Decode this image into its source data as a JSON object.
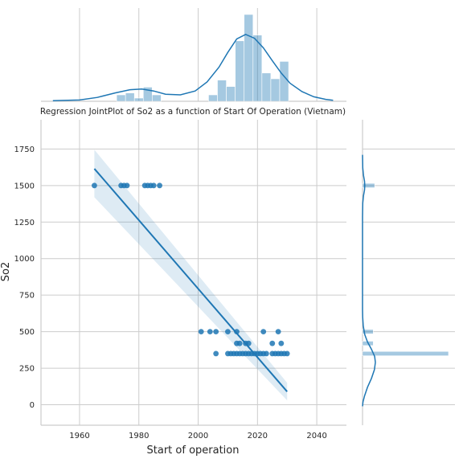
{
  "chart_data": {
    "type": "scatter",
    "title": "Regression JointPlot of So2 as a function of Start Of Operation (Vietnam)",
    "xlabel": "Start of operation",
    "ylabel": "So2",
    "xlim": [
      1947,
      2050
    ],
    "ylim": [
      -140,
      1950
    ],
    "xticks": [
      1960,
      1980,
      2000,
      2020,
      2040
    ],
    "yticks": [
      0,
      250,
      500,
      750,
      1000,
      1250,
      1500,
      1750
    ],
    "grid": true,
    "color": "#1f77b4",
    "points": [
      [
        1965,
        1500
      ],
      [
        1974,
        1500
      ],
      [
        1975,
        1500
      ],
      [
        1976,
        1500
      ],
      [
        1982,
        1500
      ],
      [
        1983,
        1500
      ],
      [
        1984,
        1500
      ],
      [
        1985,
        1500
      ],
      [
        1987,
        1500
      ],
      [
        2001,
        500
      ],
      [
        2004,
        500
      ],
      [
        2006,
        500
      ],
      [
        2010,
        500
      ],
      [
        2013,
        500
      ],
      [
        2022,
        500
      ],
      [
        2027,
        500
      ],
      [
        2013,
        420
      ],
      [
        2014,
        420
      ],
      [
        2016,
        420
      ],
      [
        2017,
        420
      ],
      [
        2025,
        420
      ],
      [
        2028,
        420
      ],
      [
        2006,
        350
      ],
      [
        2010,
        350
      ],
      [
        2011,
        350
      ],
      [
        2012,
        350
      ],
      [
        2013,
        350
      ],
      [
        2014,
        350
      ],
      [
        2015,
        350
      ],
      [
        2016,
        350
      ],
      [
        2017,
        350
      ],
      [
        2018,
        350
      ],
      [
        2019,
        350
      ],
      [
        2020,
        350
      ],
      [
        2021,
        350
      ],
      [
        2022,
        350
      ],
      [
        2023,
        350
      ],
      [
        2025,
        350
      ],
      [
        2026,
        350
      ],
      [
        2027,
        350
      ],
      [
        2028,
        350
      ],
      [
        2029,
        350
      ],
      [
        2030,
        350
      ]
    ],
    "regression": {
      "x": [
        1965,
        2030
      ],
      "y": [
        1615,
        90
      ],
      "ci_upper": [
        1745,
        150
      ],
      "ci_lower": [
        1420,
        30
      ]
    },
    "x_marginal": {
      "type": "histogram+kde",
      "bins": [
        {
          "x0": 1972.5,
          "x1": 1975.5,
          "count": 1
        },
        {
          "x0": 1975.5,
          "x1": 1978.5,
          "count": 1.3
        },
        {
          "x0": 1978.5,
          "x1": 1981.5,
          "count": 0.5
        },
        {
          "x0": 1981.5,
          "x1": 1984.5,
          "count": 2.2
        },
        {
          "x0": 1984.5,
          "x1": 1987.5,
          "count": 1
        },
        {
          "x0": 2003.5,
          "x1": 2006.5,
          "count": 1
        },
        {
          "x0": 2006.5,
          "x1": 2009.5,
          "count": 3.3
        },
        {
          "x0": 2009.5,
          "x1": 2012.5,
          "count": 2.3
        },
        {
          "x0": 2012.5,
          "x1": 2015.5,
          "count": 9.4
        },
        {
          "x0": 2015.5,
          "x1": 2018.5,
          "count": 13.5
        },
        {
          "x0": 2018.5,
          "x1": 2021.5,
          "count": 10.3
        },
        {
          "x0": 2021.5,
          "x1": 2024.5,
          "count": 4.4
        },
        {
          "x0": 2024.5,
          "x1": 2027.5,
          "count": 3.5
        },
        {
          "x0": 2027.5,
          "x1": 2030.5,
          "count": 6.2
        }
      ],
      "kde": [
        [
          1951,
          0.1
        ],
        [
          1960,
          0.2
        ],
        [
          1966,
          0.6
        ],
        [
          1972,
          1.3
        ],
        [
          1977,
          1.8
        ],
        [
          1981,
          1.9
        ],
        [
          1985,
          1.6
        ],
        [
          1989,
          1.1
        ],
        [
          1994,
          1.0
        ],
        [
          1999,
          1.6
        ],
        [
          2003,
          3.0
        ],
        [
          2007,
          5.3
        ],
        [
          2010,
          7.6
        ],
        [
          2013,
          9.7
        ],
        [
          2016,
          10.4
        ],
        [
          2019,
          9.8
        ],
        [
          2022,
          8.3
        ],
        [
          2025,
          6.3
        ],
        [
          2028,
          4.4
        ],
        [
          2031,
          2.8
        ],
        [
          2035,
          1.5
        ],
        [
          2039,
          0.7
        ],
        [
          2043,
          0.3
        ],
        [
          2045.5,
          0.15
        ]
      ]
    },
    "y_marginal": {
      "type": "histogram+kde",
      "bins": [
        {
          "y0": 335,
          "y1": 365,
          "count": 36
        },
        {
          "y0": 405,
          "y1": 435,
          "count": 4.5
        },
        {
          "y0": 485,
          "y1": 515,
          "count": 4.5
        },
        {
          "y0": 1485,
          "y1": 1515,
          "count": 5.1
        }
      ],
      "kde": [
        [
          -10,
          0
        ],
        [
          20,
          0.2
        ],
        [
          60,
          0.8
        ],
        [
          120,
          2.0
        ],
        [
          180,
          3.6
        ],
        [
          240,
          4.8
        ],
        [
          290,
          5.2
        ],
        [
          330,
          4.9
        ],
        [
          380,
          3.6
        ],
        [
          430,
          2.0
        ],
        [
          480,
          0.9
        ],
        [
          540,
          0.3
        ],
        [
          600,
          0.05
        ],
        [
          650,
          0
        ],
        [
          1290,
          0
        ],
        [
          1380,
          0.1
        ],
        [
          1430,
          0.4
        ],
        [
          1470,
          0.8
        ],
        [
          1500,
          0.9
        ],
        [
          1530,
          0.8
        ],
        [
          1570,
          0.4
        ],
        [
          1620,
          0.1
        ],
        [
          1710,
          0
        ]
      ]
    }
  }
}
